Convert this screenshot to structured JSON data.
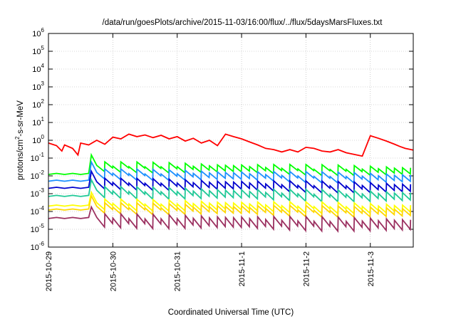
{
  "chart_data": {
    "type": "line",
    "title": "/data/run/goesPlots/archive/2015-11-03/16:00/flux/../flux/5daysMarsFluxes.txt",
    "xlabel": "Coordinated Universal Time (UTC)",
    "ylabel": "protons/cm²-s-sr-MeV",
    "ylabel_parts": {
      "pre": "protons/cm",
      "sup": "2",
      "post": "-s-sr-MeV"
    },
    "yscale": "log",
    "ylim": [
      1e-06,
      1000000.0
    ],
    "ytick_exponents": [
      -6,
      -5,
      -4,
      -3,
      -2,
      -1,
      0,
      1,
      2,
      3,
      4,
      5,
      6
    ],
    "ytick_base": "10",
    "xlim": [
      "2015-10-29T00:00",
      "2015-11-03T16:00"
    ],
    "xticks": [
      {
        "label": "2015-10-29",
        "date": "2015-10-29T00:00"
      },
      {
        "label": "2015-10-30",
        "date": "2015-10-30T00:00"
      },
      {
        "label": "2015-10-31",
        "date": "2015-10-31T00:00"
      },
      {
        "label": "2015-11-1",
        "date": "2015-11-01T00:00"
      },
      {
        "label": "2015-11-2",
        "date": "2015-11-02T00:00"
      },
      {
        "label": "2015-11-3",
        "date": "2015-11-03T00:00"
      }
    ],
    "grid": true,
    "series": [
      {
        "color": "#ff0000",
        "points": [
          [
            "2015-10-29T00:00",
            0.7
          ],
          [
            "2015-10-29T03:00",
            0.5
          ],
          [
            "2015-10-29T05:00",
            0.25
          ],
          [
            "2015-10-29T06:00",
            0.55
          ],
          [
            "2015-10-29T09:00",
            0.35
          ],
          [
            "2015-10-29T11:00",
            0.15
          ],
          [
            "2015-10-29T12:00",
            0.7
          ],
          [
            "2015-10-29T15:00",
            0.55
          ],
          [
            "2015-10-29T18:00",
            1.0
          ],
          [
            "2015-10-29T21:00",
            0.6
          ],
          [
            "2015-10-30T00:00",
            1.5
          ],
          [
            "2015-10-30T03:00",
            1.2
          ],
          [
            "2015-10-30T06:00",
            2.2
          ],
          [
            "2015-10-30T09:00",
            1.6
          ],
          [
            "2015-10-30T12:00",
            2.0
          ],
          [
            "2015-10-30T15:00",
            1.4
          ],
          [
            "2015-10-30T18:00",
            1.9
          ],
          [
            "2015-10-30T21:00",
            1.2
          ],
          [
            "2015-10-31T00:00",
            1.6
          ],
          [
            "2015-10-31T03:00",
            0.9
          ],
          [
            "2015-10-31T06:00",
            1.3
          ],
          [
            "2015-10-31T09:00",
            0.7
          ],
          [
            "2015-10-31T12:00",
            1.0
          ],
          [
            "2015-10-31T15:00",
            0.5
          ],
          [
            "2015-10-31T18:00",
            2.2
          ],
          [
            "2015-10-31T21:00",
            1.6
          ],
          [
            "2015-11-01T00:00",
            1.2
          ],
          [
            "2015-11-01T03:00",
            0.8
          ],
          [
            "2015-11-01T06:00",
            0.55
          ],
          [
            "2015-11-01T09:00",
            0.35
          ],
          [
            "2015-11-01T12:00",
            0.3
          ],
          [
            "2015-11-01T15:00",
            0.22
          ],
          [
            "2015-11-01T18:00",
            0.3
          ],
          [
            "2015-11-01T21:00",
            0.22
          ],
          [
            "2015-11-02T00:00",
            0.4
          ],
          [
            "2015-11-02T03:00",
            0.35
          ],
          [
            "2015-11-02T06:00",
            0.25
          ],
          [
            "2015-11-02T09:00",
            0.22
          ],
          [
            "2015-11-02T12:00",
            0.3
          ],
          [
            "2015-11-02T15:00",
            0.2
          ],
          [
            "2015-11-02T18:00",
            0.16
          ],
          [
            "2015-11-02T21:00",
            0.13
          ],
          [
            "2015-11-03T00:00",
            1.8
          ],
          [
            "2015-11-03T03:00",
            1.3
          ],
          [
            "2015-11-03T06:00",
            0.9
          ],
          [
            "2015-11-03T09:00",
            0.6
          ],
          [
            "2015-11-03T11:00",
            0.45
          ],
          [
            "2015-11-03T13:00",
            0.35
          ],
          [
            "2015-11-03T16:00",
            0.28
          ]
        ]
      },
      {
        "color": "#00ff00",
        "base": 0.05,
        "pre": 0.012,
        "amp": 2.2
      },
      {
        "color": "#1e90ff",
        "base": 0.02,
        "pre": 0.005,
        "amp": 2.3
      },
      {
        "color": "#0000cd",
        "base": 0.006,
        "pre": 0.002,
        "amp": 2.5
      },
      {
        "color": "#20c997",
        "base": 0.002,
        "pre": 0.0007,
        "amp": 2.6
      },
      {
        "color": "#ffff00",
        "base": 0.0004,
        "pre": 0.0002,
        "amp": 2.4
      },
      {
        "color": "#ffd700",
        "base": 0.00025,
        "pre": 0.00012,
        "amp": 2.4
      },
      {
        "color": "#9b3060",
        "base": 6e-05,
        "pre": 4e-05,
        "amp": 3.5
      }
    ]
  }
}
